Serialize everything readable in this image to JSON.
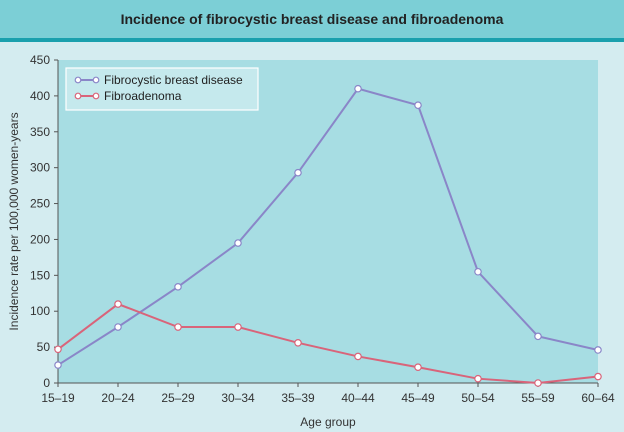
{
  "title": "Incidence of fibrocystic breast disease and fibroadenoma",
  "colors": {
    "header_bg": "#7ccfd6",
    "header_rule": "#1aa0ad",
    "page_bg": "#d4ecf0",
    "plot_bg": "#a7dde3",
    "fibrocystic": "#8a86c8",
    "fibroadenoma": "#d9647a"
  },
  "chart_data": {
    "type": "line",
    "title": "Incidence of fibrocystic breast disease and fibroadenoma",
    "xlabel": "Age group",
    "ylabel": "Incidence rate per 100,000 women-years",
    "categories": [
      "15–19",
      "20–24",
      "25–29",
      "30–34",
      "35–39",
      "40–44",
      "45–49",
      "50–54",
      "55–59",
      "60–64"
    ],
    "ylim": [
      0,
      450
    ],
    "yticks": [
      0,
      50,
      100,
      150,
      200,
      250,
      300,
      350,
      400,
      450
    ],
    "grid": false,
    "legend_position": "top-left",
    "series": [
      {
        "name": "Fibrocystic breast disease",
        "color": "#8a86c8",
        "values": [
          25,
          78,
          134,
          195,
          293,
          410,
          387,
          155,
          65,
          46
        ]
      },
      {
        "name": "Fibroadenoma",
        "color": "#d9647a",
        "values": [
          47,
          110,
          78,
          78,
          56,
          37,
          22,
          6,
          0,
          9
        ]
      }
    ]
  }
}
